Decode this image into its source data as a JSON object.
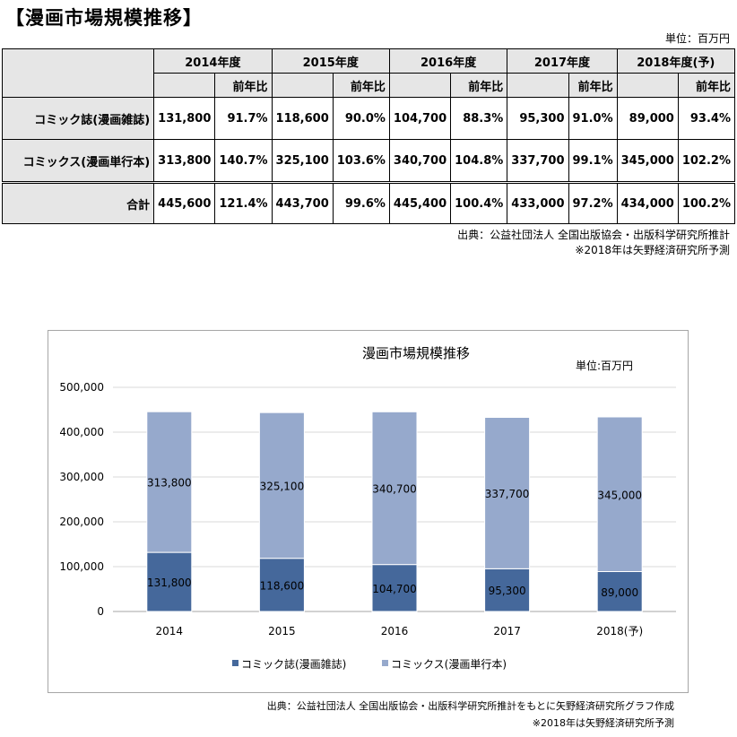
{
  "page": {
    "title": "【漫画市場規模推移】",
    "unit": "単位：百万円",
    "source_line1": "出典：公益社団法人 全国出版協会・出版科学研究所推計",
    "source_line2": "※2018年は矢野経済研究所予測",
    "chart_source_line1": "出典：公益社団法人 全国出版協会・出版科学研究所推計をもとに矢野経済研究所グラフ作成",
    "chart_source_line2": "※2018年は矢野経済研究所予測"
  },
  "table": {
    "years": [
      "2014年度",
      "2015年度",
      "2016年度",
      "2017年度",
      "2018年度(予)"
    ],
    "yoy_label": "前年比",
    "rows": [
      {
        "label": "コミック誌(漫画雑誌)",
        "values": [
          "131,800",
          "91.7%",
          "118,600",
          "90.0%",
          "104,700",
          "88.3%",
          "95,300",
          "91.0%",
          "89,000",
          "93.4%"
        ]
      },
      {
        "label": "コミックス(漫画単行本)",
        "values": [
          "313,800",
          "140.7%",
          "325,100",
          "103.6%",
          "340,700",
          "104.8%",
          "337,700",
          "99.1%",
          "345,000",
          "102.2%"
        ]
      },
      {
        "label": "合計",
        "values": [
          "445,600",
          "121.4%",
          "443,700",
          "99.6%",
          "445,400",
          "100.4%",
          "433,000",
          "97.2%",
          "434,000",
          "100.2%"
        ]
      }
    ]
  },
  "chart_data": {
    "type": "bar",
    "stacked": true,
    "title": "漫画市場規模推移",
    "unit_label": "単位:百万円",
    "categories": [
      "2014",
      "2015",
      "2016",
      "2017",
      "2018(予)"
    ],
    "series": [
      {
        "name": "コミック誌(漫画雑誌)",
        "values": [
          131800,
          118600,
          104700,
          95300,
          89000
        ],
        "labels": [
          "131,800",
          "118,600",
          "104,700",
          "95,300",
          "89,000"
        ],
        "color": "#45689b"
      },
      {
        "name": "コミックス(漫画単行本)",
        "values": [
          313800,
          325100,
          340700,
          337700,
          345000
        ],
        "labels": [
          "313,800",
          "325,100",
          "340,700",
          "337,700",
          "345,000"
        ],
        "color": "#96a9cc"
      }
    ],
    "ylim": [
      0,
      500000
    ],
    "yticks": [
      0,
      100000,
      200000,
      300000,
      400000,
      500000
    ],
    "ytick_labels": [
      "0",
      "100,000",
      "200,000",
      "300,000",
      "400,000",
      "500,000"
    ],
    "grid": true,
    "legend_position": "bottom"
  }
}
